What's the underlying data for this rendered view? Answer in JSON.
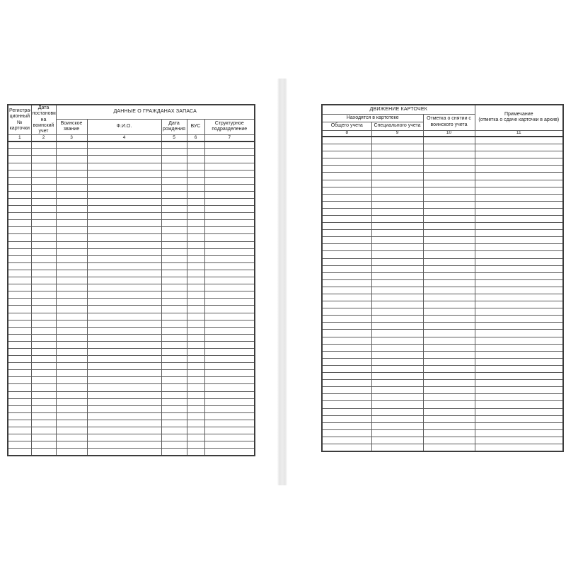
{
  "page": {
    "background_color": "#ffffff",
    "spine_color": "#e9e9e9",
    "line_color": "#5a5a5a"
  },
  "left_table": {
    "header_registration": "Регистра-\nционный №\nкарточки",
    "header_date": "Дата\nпостановки\nна воинский\nучет",
    "title": "ДАННЫЕ О ГРАЖДАНАХ ЗАПАСА",
    "sub_headers": {
      "rank": "Воинское\nзвание",
      "fio": "Ф.И.О.",
      "birth_date": "Дата\nрождения",
      "vus": "ВУС",
      "unit": "Структурное\nподразделение"
    },
    "column_numbers": [
      "1",
      "2",
      "3",
      "4",
      "5",
      "6",
      "7"
    ],
    "body_rows": 44
  },
  "right_table": {
    "title": "ДВИЖЕНИЕ КАРТОЧЕК",
    "group_header": "Находятся в картотеке",
    "sub_headers": {
      "general": "Общего учета",
      "special": "Специального учета"
    },
    "header_removal": "Отметка о снятии с\nвоинского учета",
    "header_note": "Примечание\n(отметка о сдаче карточки в архив)",
    "column_numbers": [
      "8",
      "9",
      "10",
      "11"
    ],
    "body_rows": 44
  }
}
